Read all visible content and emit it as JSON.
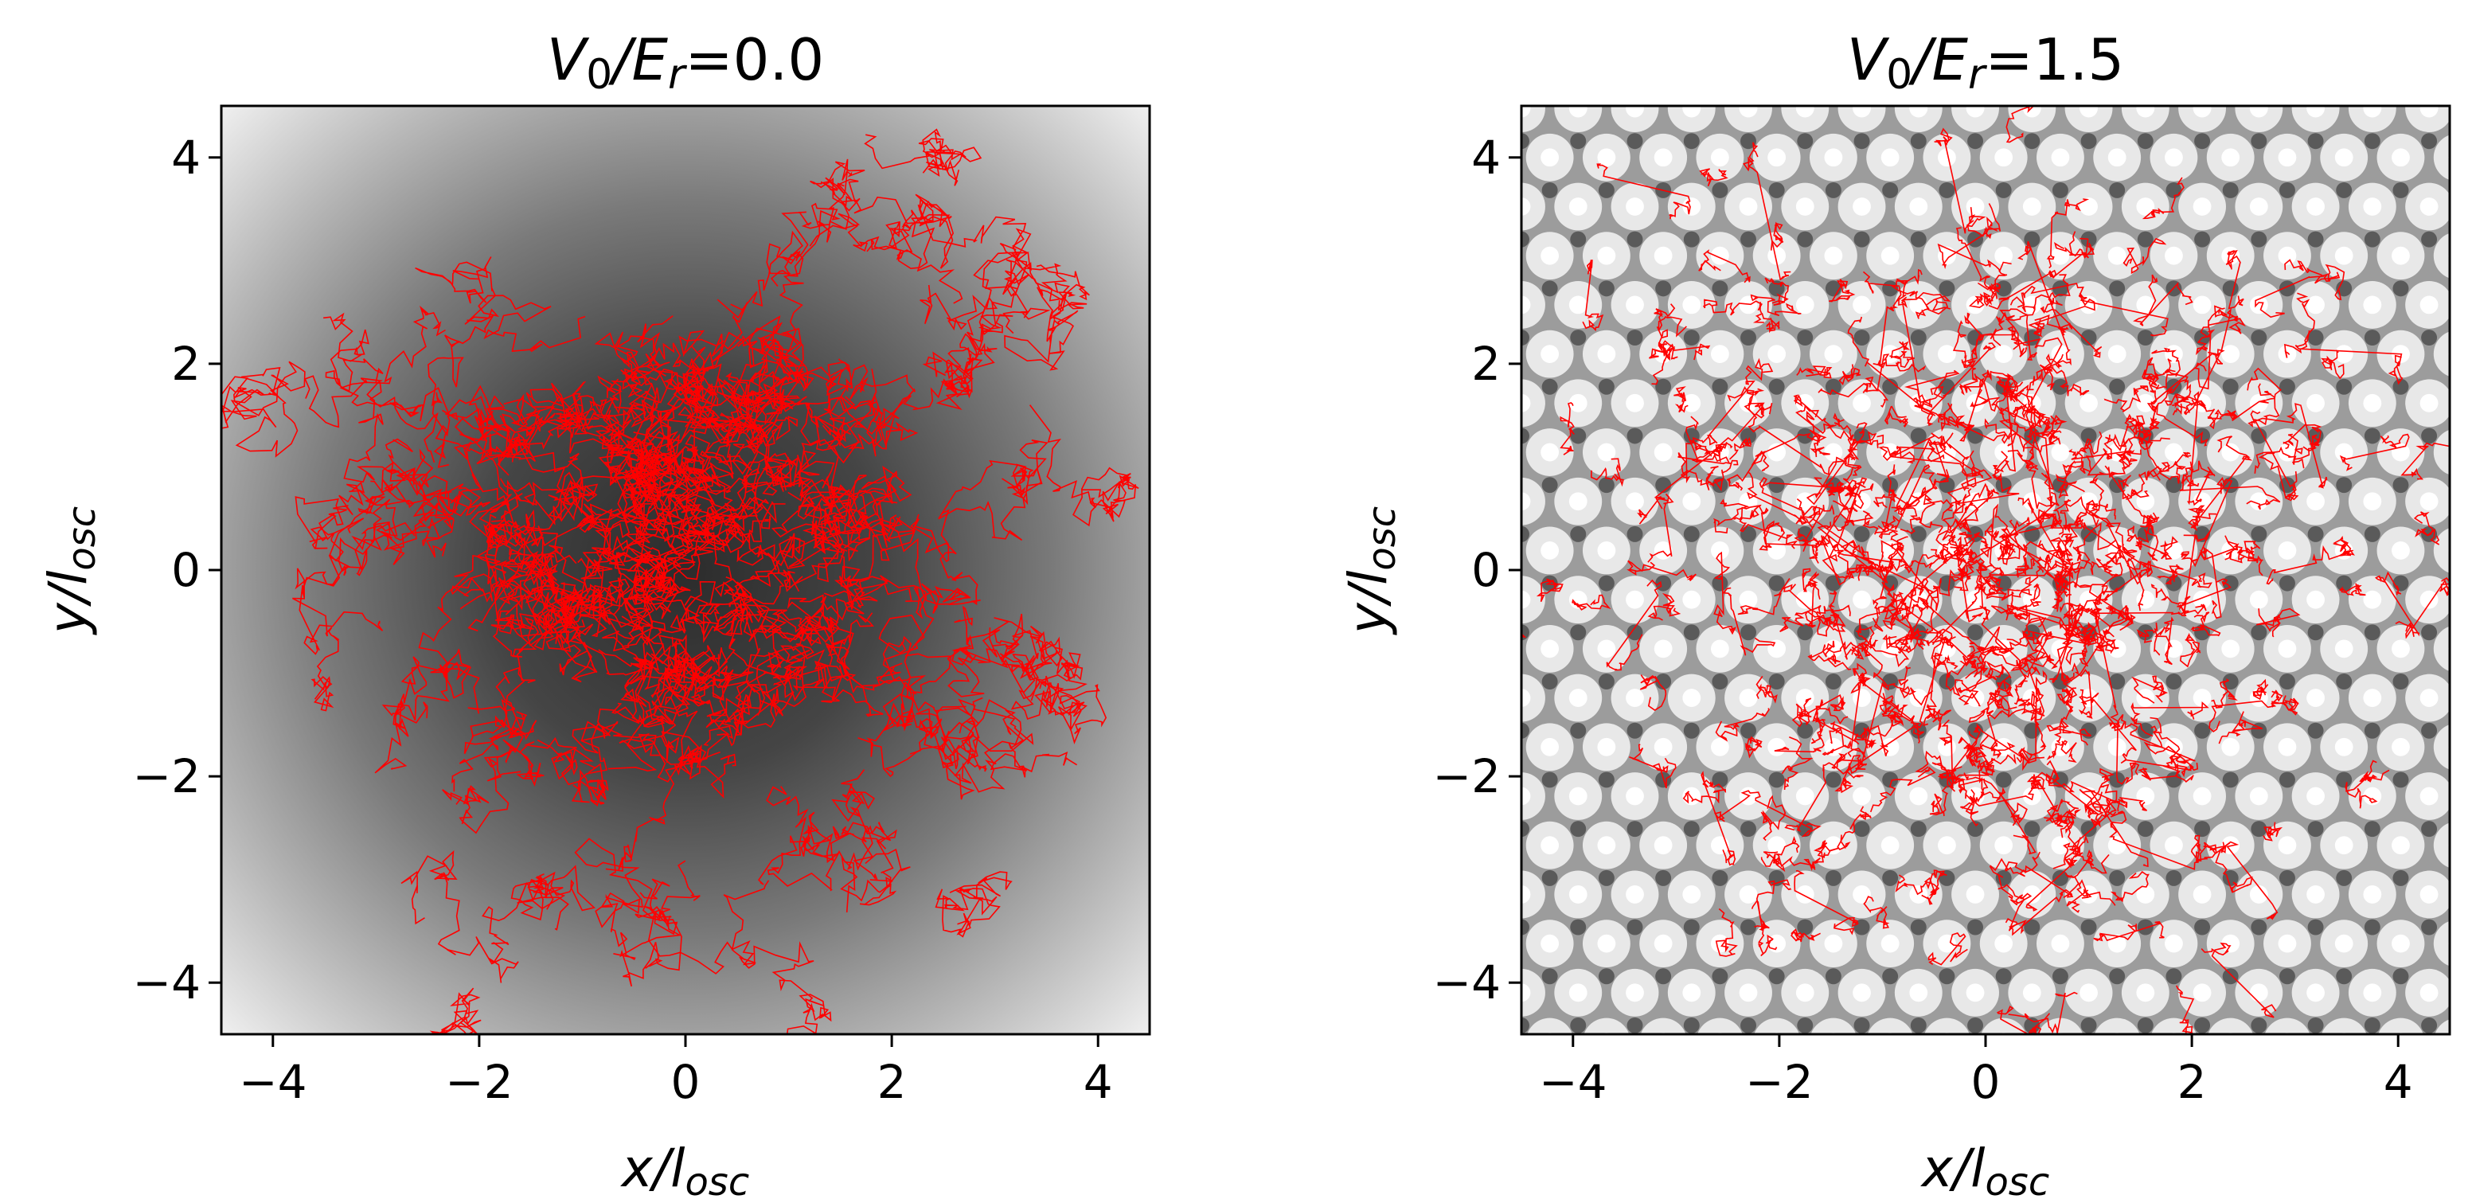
{
  "chart_data": [
    {
      "type": "scatter",
      "panel": "left",
      "title": {
        "prefix": "V",
        "prefix_sub": "0",
        "mid": "/E",
        "mid_sub": "r",
        "suffix": "=0.0"
      },
      "xlabel": {
        "main": "x/l",
        "sub": "osc"
      },
      "ylabel": {
        "main": "y/l",
        "sub": "osc"
      },
      "xlim": [
        -4.5,
        4.5
      ],
      "ylim": [
        -4.5,
        4.5
      ],
      "xticks": [
        -4,
        -2,
        0,
        2,
        4
      ],
      "yticks": [
        -4,
        -2,
        0,
        2,
        4
      ],
      "tick_labels": [
        "−4",
        "−2",
        "0",
        "2",
        "4"
      ],
      "background": "harmonic-trap-potential",
      "lattice_depth": 0.0,
      "trajectory_color": "#ff0000",
      "grid": false
    },
    {
      "type": "scatter",
      "panel": "right",
      "title": {
        "prefix": "V",
        "prefix_sub": "0",
        "mid": "/E",
        "mid_sub": "r",
        "suffix": "=1.5"
      },
      "xlabel": {
        "main": "x/l",
        "sub": "osc"
      },
      "ylabel": {
        "main": "y/l",
        "sub": "osc"
      },
      "xlim": [
        -4.5,
        4.5
      ],
      "ylim": [
        -4.5,
        4.5
      ],
      "xticks": [
        -4,
        -2,
        0,
        2,
        4
      ],
      "yticks": [
        -4,
        -2,
        0,
        2,
        4
      ],
      "tick_labels": [
        "−4",
        "−2",
        "0",
        "2",
        "4"
      ],
      "background": "hexagonal-optical-lattice-potential",
      "lattice_depth": 1.5,
      "lattice_spacing": 0.55,
      "trajectory_color": "#ff0000",
      "grid": false
    }
  ]
}
